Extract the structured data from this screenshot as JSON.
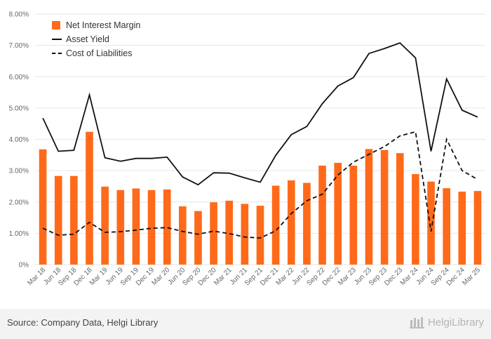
{
  "chart_data": {
    "type": "bar+line",
    "categories": [
      "Mar 18",
      "Jun 18",
      "Sep 18",
      "Dec 18",
      "Mar 19",
      "Jun 19",
      "Sep 19",
      "Dec 19",
      "Mar 20",
      "Jun 20",
      "Sep 20",
      "Dec 20",
      "Mar 21",
      "Jun 21",
      "Sep 21",
      "Dec 21",
      "Mar 22",
      "Jun 22",
      "Sep 22",
      "Dec 22",
      "Mar 23",
      "Jun 23",
      "Sep 23",
      "Dec 23",
      "Mar 24",
      "Jun 24",
      "Sep 24",
      "Dec 24",
      "Mar 25"
    ],
    "series": [
      {
        "name": "Net Interest Margin",
        "type": "bar",
        "color": "#ff6a1a",
        "values": [
          3.68,
          2.83,
          2.83,
          4.24,
          2.49,
          2.38,
          2.43,
          2.38,
          2.4,
          1.86,
          1.71,
          1.99,
          2.04,
          1.94,
          1.88,
          2.52,
          2.69,
          2.61,
          3.16,
          3.25,
          3.16,
          3.69,
          3.66,
          3.56,
          2.89,
          2.65,
          2.44,
          2.33,
          2.35
        ]
      },
      {
        "name": "Asset Yield",
        "type": "line",
        "style": "solid",
        "color": "#111111",
        "values": [
          4.68,
          3.62,
          3.65,
          5.42,
          3.41,
          3.3,
          3.39,
          3.39,
          3.43,
          2.8,
          2.55,
          2.93,
          2.92,
          2.77,
          2.63,
          3.49,
          4.15,
          4.41,
          5.14,
          5.7,
          5.97,
          6.74,
          6.9,
          7.08,
          6.6,
          3.62,
          5.93,
          4.93,
          4.71
        ]
      },
      {
        "name": "Cost of Liabilities",
        "type": "line",
        "style": "dashed",
        "color": "#111111",
        "values": [
          1.16,
          0.94,
          0.97,
          1.35,
          1.03,
          1.05,
          1.1,
          1.16,
          1.18,
          1.06,
          0.97,
          1.07,
          0.99,
          0.88,
          0.85,
          1.08,
          1.63,
          2.04,
          2.25,
          2.86,
          3.27,
          3.52,
          3.77,
          4.11,
          4.24,
          1.06,
          4.0,
          3.0,
          2.72
        ]
      }
    ],
    "y_ticks": [
      "0%",
      "1.00%",
      "2.00%",
      "3.00%",
      "4.00%",
      "5.00%",
      "6.00%",
      "7.00%",
      "8.00%"
    ],
    "ylim": [
      0,
      8
    ],
    "grid": true,
    "legend_position": "top-left"
  },
  "legend": {
    "nim": "Net Interest Margin",
    "asset_yield": "Asset Yield",
    "cost": "Cost of Liabilities"
  },
  "footer": {
    "source": "Source: Company Data, Helgi Library",
    "brand": "HelgiLibrary"
  },
  "colors": {
    "bar": "#ff6a1a",
    "line": "#111111",
    "grid": "#e6e6e6"
  }
}
